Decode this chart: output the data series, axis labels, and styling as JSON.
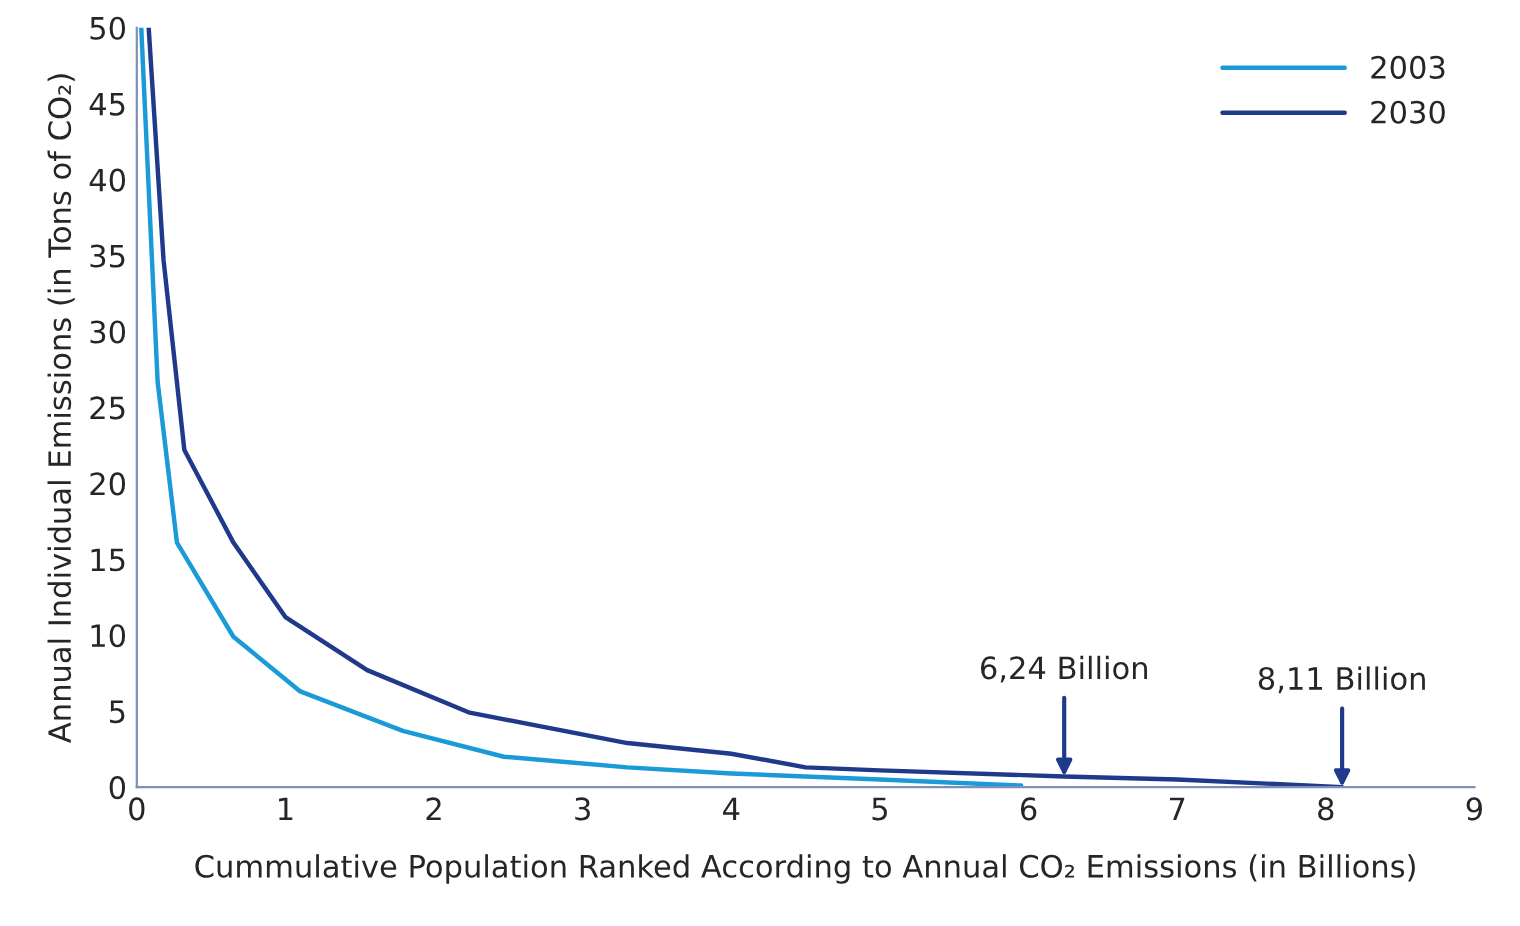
{
  "chart_data": {
    "type": "line",
    "xlabel": "Cummulative Population Ranked According to Annual CO₂ Emissions (in Billions)",
    "ylabel": "Annual Individual Emissions (in Tons of CO₂)",
    "xlim": [
      0,
      9
    ],
    "ylim": [
      0,
      50
    ],
    "xticks": [
      0,
      1,
      2,
      3,
      4,
      5,
      6,
      7,
      8,
      9
    ],
    "yticks": [
      0,
      5,
      10,
      15,
      20,
      25,
      30,
      35,
      40,
      45,
      50
    ],
    "grid": false,
    "legend": "top right",
    "marker": "none",
    "line_style": "solid",
    "series": [
      {
        "name": "2003",
        "color": "#1a9ad6",
        "x": [
          0.03,
          0.14,
          0.27,
          0.65,
          1.1,
          1.79,
          2.47,
          3.3,
          4,
          5,
          5.95
        ],
        "values": [
          50,
          26.7,
          16.1,
          9.9,
          6.3,
          3.7,
          2.0,
          1.3,
          0.9,
          0.5,
          0.1
        ]
      },
      {
        "name": "2030",
        "color": "#1f3a8a",
        "x": [
          0.08,
          0.18,
          0.32,
          0.65,
          1.0,
          1.55,
          2.24,
          3.3,
          4,
          4.5,
          5,
          6.24,
          7,
          8.11
        ],
        "values": [
          50,
          34.7,
          22.2,
          16.1,
          11.2,
          7.7,
          4.9,
          2.9,
          2.2,
          1.3,
          1.1,
          0.7,
          0.5,
          0
        ]
      }
    ],
    "annotations": [
      {
        "text": "6,24 Billion",
        "x": 6.24,
        "y": 0.7
      },
      {
        "text": "8,11 Billion",
        "x": 8.11,
        "y": 0
      }
    ]
  }
}
